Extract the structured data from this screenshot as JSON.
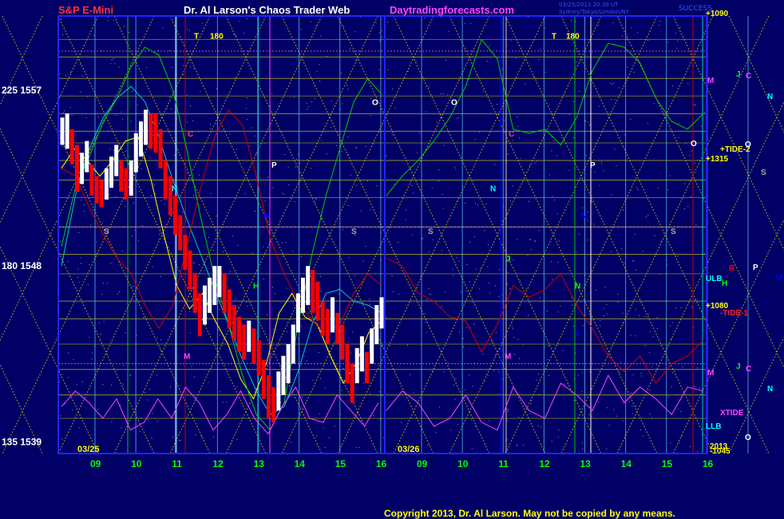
{
  "header": {
    "symbol": "S&P E-Mini",
    "title": "Dr. Al Larson's Chaos Trader Web",
    "site": "Daytradingforecasts.com",
    "timestamp1": "03/25/2013 20:30 UT",
    "timestamp2": "Sydney/Tokyo/London/NY",
    "success": "SUCCESS"
  },
  "copyright": "Copyright 2013, Dr. Al Larson. May not be copied by any means.",
  "colors": {
    "background": "#000066",
    "frame": "#2222ff",
    "symbol": "#ff3333",
    "title": "#ffffff",
    "site": "#ff44ff",
    "grid_h": "#888833",
    "fan": "#dddd00",
    "bar_up": "#ffffff",
    "bar_down": "#ff0000"
  },
  "chart_data": {
    "type": "line",
    "title": "S&P E-Mini",
    "price_axis": {
      "labels": [
        "225  1557",
        "180  1548",
        "135  1539"
      ],
      "prices": [
        1557,
        1548,
        1539
      ]
    },
    "hour_ticks": [
      "09",
      "10",
      "11",
      "12",
      "13",
      "14",
      "15",
      "16",
      "09",
      "10",
      "11",
      "12",
      "13",
      "14",
      "15",
      "16"
    ],
    "date_labels": [
      "03/25",
      "03/26"
    ],
    "price_bars": [
      [
        1554.2,
        1555.6
      ],
      [
        1554.0,
        1555.8
      ],
      [
        1553.2,
        1555.0
      ],
      [
        1551.8,
        1554.2
      ],
      [
        1552.2,
        1553.8
      ],
      [
        1552.8,
        1554.4
      ],
      [
        1551.6,
        1553.2
      ],
      [
        1551.2,
        1552.6
      ],
      [
        1551.0,
        1552.4
      ],
      [
        1551.4,
        1553.0
      ],
      [
        1552.0,
        1553.6
      ],
      [
        1552.6,
        1554.2
      ],
      [
        1551.8,
        1553.4
      ],
      [
        1551.4,
        1553.0
      ],
      [
        1551.6,
        1553.4
      ],
      [
        1552.8,
        1554.8
      ],
      [
        1553.6,
        1555.4
      ],
      [
        1554.2,
        1556.0
      ],
      [
        1554.0,
        1555.8
      ],
      [
        1553.8,
        1555.8
      ],
      [
        1553.0,
        1555.0
      ],
      [
        1551.4,
        1553.4
      ],
      [
        1550.6,
        1552.6
      ],
      [
        1549.6,
        1551.6
      ],
      [
        1548.8,
        1550.6
      ],
      [
        1547.8,
        1549.6
      ],
      [
        1546.8,
        1548.8
      ],
      [
        1545.6,
        1547.6
      ],
      [
        1544.4,
        1546.6
      ],
      [
        1545.0,
        1547.0
      ],
      [
        1545.6,
        1547.4
      ],
      [
        1546.0,
        1548.0
      ],
      [
        1546.4,
        1548.0
      ],
      [
        1545.6,
        1547.6
      ],
      [
        1544.8,
        1546.8
      ],
      [
        1544.2,
        1546.0
      ],
      [
        1543.6,
        1545.4
      ],
      [
        1543.2,
        1545.0
      ],
      [
        1543.6,
        1545.2
      ],
      [
        1543.0,
        1544.8
      ],
      [
        1542.4,
        1544.2
      ],
      [
        1541.2,
        1543.2
      ],
      [
        1540.2,
        1542.4
      ],
      [
        1540.0,
        1541.8
      ],
      [
        1540.6,
        1542.6
      ],
      [
        1541.4,
        1543.4
      ],
      [
        1542.0,
        1544.0
      ],
      [
        1543.0,
        1545.0
      ],
      [
        1544.6,
        1546.6
      ],
      [
        1545.6,
        1547.4
      ],
      [
        1546.0,
        1548.0
      ],
      [
        1545.6,
        1547.8
      ],
      [
        1545.2,
        1547.2
      ],
      [
        1544.4,
        1546.2
      ],
      [
        1544.0,
        1545.8
      ],
      [
        1544.6,
        1546.4
      ],
      [
        1544.0,
        1545.6
      ],
      [
        1543.2,
        1545.0
      ],
      [
        1542.0,
        1544.0
      ],
      [
        1541.0,
        1543.0
      ],
      [
        1542.0,
        1543.8
      ],
      [
        1542.6,
        1544.4
      ],
      [
        1542.0,
        1543.6
      ],
      [
        1543.0,
        1544.8
      ],
      [
        1544.0,
        1546.0
      ],
      [
        1544.8,
        1546.4
      ]
    ],
    "bar_colors": "up bars white, down bars red",
    "series": [
      {
        "color": "#ffff00",
        "values_per_axis": "price",
        "values": [
          1553.0,
          1554.0,
          1553.4,
          1552.6,
          1553.4,
          1554.4,
          1554.6,
          1552.4,
          1549.6,
          1547.0,
          1545.8,
          1546.6,
          1545.2,
          1544.0,
          1542.2,
          1541.2,
          1543.0,
          1545.6,
          1546.6,
          1545.4,
          1545.0,
          1543.4,
          1542.0,
          1543.0,
          1544.6,
          1545.2
        ]
      },
      {
        "color": "#00cc00",
        "values": [
          1549.0,
          1552.0,
          1553.6,
          1555.4,
          1556.6,
          1558.2,
          1559.2,
          1558.8,
          1557.0,
          1554.0,
          1550.5,
          1547.4,
          1545.0,
          1542.4,
          1540.4,
          1539.6,
          1541.0,
          1545.0,
          1548.6,
          1551.6,
          1554.0,
          1556.4,
          1557.6,
          1556.8
        ]
      },
      {
        "color": "#00cccc",
        "values": [
          1548.0,
          1551.6,
          1554.0,
          1555.6,
          1556.6,
          1557.2,
          1556.4,
          1554.6,
          1552.4,
          1550.4,
          1548.6,
          1546.8,
          1545.0,
          1543.2,
          1541.6,
          1540.4,
          1540.8,
          1542.6,
          1545.0,
          1546.6,
          1546.8,
          1546.2,
          1546.0,
          1545.6
        ]
      },
      {
        "color": "#cc0000",
        "values": [
          1553.0,
          1552.6,
          1551.0,
          1549.6,
          1548.4,
          1547.6,
          1546.0,
          1544.8,
          1546.0,
          1549.0,
          1552.0,
          1554.6,
          1556.0,
          1555.2,
          1552.6,
          1549.4,
          1547.6,
          1546.2,
          1545.2,
          1544.6,
          1545.0,
          1546.6,
          1547.6,
          1547.0
        ]
      }
    ],
    "forecast_series": [
      {
        "color": "#00cc00",
        "values": [
          1551.6,
          1552.6,
          1553.4,
          1554.4,
          1555.6,
          1557.2,
          1559.6,
          1558.6,
          1555.0,
          1554.8,
          1555.0,
          1554.2,
          1555.6,
          1558.0,
          1559.4,
          1559.2,
          1558.4,
          1556.6,
          1555.4,
          1555.0,
          1555.8
        ]
      },
      {
        "color": "#cc0000",
        "values": [
          1548.4,
          1548.0,
          1546.6,
          1546.2,
          1545.4,
          1545.2,
          1543.6,
          1545.0,
          1547.0,
          1546.4,
          1546.8,
          1547.6,
          1546.0,
          1544.8,
          1543.4,
          1542.6,
          1543.4,
          1542.0,
          1543.0,
          1543.4,
          1544.2
        ]
      },
      {
        "color": "#ff44ff",
        "values": [
          1540.6,
          1541.6,
          1541.0,
          1539.8,
          1540.2,
          1541.4,
          1540.0,
          1539.6,
          1541.8,
          1540.6,
          1540.2,
          1542.0,
          1541.4,
          1540.6,
          1542.4,
          1541.0,
          1541.8,
          1541.2,
          1540.4,
          1541.8,
          1541.6
        ]
      }
    ],
    "xtide_values": [
      1540.8,
      1541.6,
      1541.0,
      1540.2,
      1541.2,
      1539.6,
      1540.0,
      1541.2,
      1540.2,
      1541.8,
      1541.0,
      1539.6,
      1540.4,
      1541.6,
      1540.2,
      1539.4,
      1540.8,
      1541.8,
      1540.2,
      1540.0,
      1541.4,
      1540.6,
      1539.8,
      1541.0
    ],
    "markers_left": [
      {
        "label": "T",
        "price": 1559.8,
        "color": "#ffff00"
      },
      {
        "label": "180",
        "price": 1559.8,
        "color": "#ffff00"
      },
      {
        "label": "O",
        "price": 1556.4,
        "color": "#ffffff"
      },
      {
        "label": "C",
        "price": 1554.8,
        "color": "#ff4444"
      },
      {
        "label": "P",
        "price": 1553.2,
        "color": "#ffffff"
      },
      {
        "label": "N",
        "price": 1552.0,
        "color": "#00ffff"
      },
      {
        "label": "N",
        "price": 1550.6,
        "color": "#0000ff"
      },
      {
        "label": "S",
        "price": 1549.8,
        "color": "#aaaaaa"
      },
      {
        "label": "S",
        "price": 1549.8,
        "color": "#aaaaaa"
      },
      {
        "label": "H",
        "price": 1547.0,
        "color": "#00ff00"
      },
      {
        "label": "M",
        "price": 1543.4,
        "color": "#ff44ff"
      }
    ],
    "markers_right": [
      {
        "label": "T",
        "price": 1559.8,
        "color": "#ffff00"
      },
      {
        "label": "180",
        "price": 1559.8,
        "color": "#ffff00"
      },
      {
        "label": "O",
        "price": 1556.4,
        "color": "#ffffff"
      },
      {
        "label": "C",
        "price": 1554.8,
        "color": "#ff4444"
      },
      {
        "label": "P",
        "price": 1553.2,
        "color": "#ffffff"
      },
      {
        "label": "N",
        "price": 1552.0,
        "color": "#00ffff"
      },
      {
        "label": "N",
        "price": 1550.6,
        "color": "#0000ff"
      },
      {
        "label": "S",
        "price": 1549.8,
        "color": "#aaaaaa"
      },
      {
        "label": "S",
        "price": 1549.8,
        "color": "#aaaaaa"
      },
      {
        "label": "J",
        "price": 1548.4,
        "color": "#00ff00"
      },
      {
        "label": "N",
        "price": 1547.0,
        "color": "#00ff00"
      },
      {
        "label": "M",
        "price": 1543.4,
        "color": "#ff44ff"
      },
      {
        "label": "J",
        "price": 1544.6,
        "color": "#0000ff"
      }
    ],
    "right_labels": [
      {
        "text": "+1090",
        "color": "#ffff00"
      },
      {
        "text": "M",
        "color": "#ff44ff"
      },
      {
        "text": "J",
        "color": "#00ff00"
      },
      {
        "text": "C",
        "color": "#ff44ff"
      },
      {
        "text": "N",
        "color": "#00ffff"
      },
      {
        "text": "O",
        "color": "#ffffff"
      },
      {
        "text": "+TIDE-2",
        "color": "#ffff00"
      },
      {
        "text": "O",
        "color": "#ffffff"
      },
      {
        "text": "+1315",
        "color": "#ffff00"
      },
      {
        "text": "S",
        "color": "#aaaaaa"
      },
      {
        "text": "R",
        "color": "#ff0000"
      },
      {
        "text": "P",
        "color": "#ffffff"
      },
      {
        "text": "U",
        "color": "#0000ff"
      },
      {
        "text": "ULB",
        "color": "#00ffff"
      },
      {
        "text": "H",
        "color": "#00ff00"
      },
      {
        "text": "+1080",
        "color": "#ffff00"
      },
      {
        "text": "-TIDE-1",
        "color": "#ff2222"
      },
      {
        "text": "M",
        "color": "#ff44ff"
      },
      {
        "text": "J",
        "color": "#00ff00"
      },
      {
        "text": "C",
        "color": "#ff44ff"
      },
      {
        "text": "N",
        "color": "#00ffff"
      },
      {
        "text": "XTIDE",
        "color": "#ff44ff"
      },
      {
        "text": "LLB",
        "color": "#00ffff"
      },
      {
        "text": "O",
        "color": "#ffffff"
      },
      {
        "text": "2013",
        "color": "#ffff00"
      },
      {
        "text": "-1045",
        "color": "#ffff00"
      }
    ],
    "grid": true
  }
}
